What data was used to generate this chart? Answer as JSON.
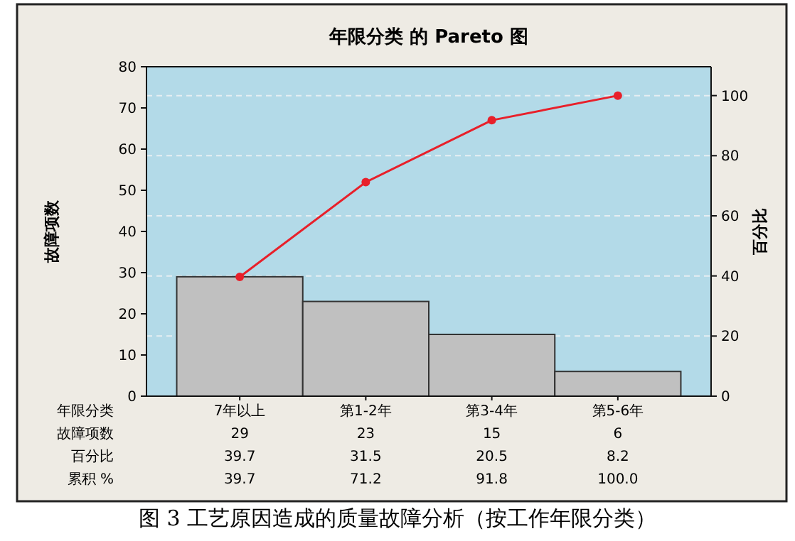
{
  "chart_data": {
    "type": "bar",
    "title": "年限分类 的 Pareto 图",
    "xlabel": "年限分类",
    "ylabel": "故障项数",
    "y2label": "百分比",
    "categories": [
      "7年以上",
      "第1-2年",
      "第3-4年",
      "第5-6年"
    ],
    "series": [
      {
        "color": "#c0c0c0",
        "values": [
          29,
          23,
          15,
          6
        ],
        "value_labels": [
          "29",
          "23",
          "15",
          "6"
        ]
      },
      {
        "type": "line",
        "axis": "y2",
        "color": "#e8202a",
        "values": [
          39.7,
          71.2,
          91.8,
          100
        ],
        "value_labels": [
          "39.7",
          "71.2",
          "91.8",
          "100.0"
        ]
      }
    ],
    "ylim": [
      0,
      80
    ],
    "yticks": [
      0,
      10,
      20,
      30,
      40,
      50,
      60,
      70,
      80
    ],
    "y2lim": [
      0,
      109.6
    ],
    "y2ticks": [
      0,
      20,
      40,
      60,
      80,
      100
    ],
    "grid": true,
    "marker": "circle",
    "line_style": "solid",
    "annotations": [
      "故障项数",
      "百分比",
      "39.7",
      "31.5",
      "20.5",
      "8.2",
      "累积 %",
      "图 3 工艺原因造成的质量故障分析（按工作年限分类）"
    ]
  }
}
